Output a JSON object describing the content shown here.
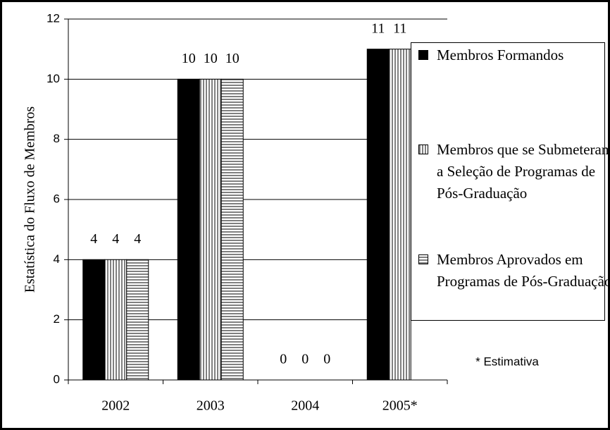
{
  "chart_data": {
    "type": "bar",
    "y_label": "Estatística do Fluxo de Membros",
    "annotation": "* Estimativa",
    "categories": [
      "2002",
      "2003",
      "2004",
      "2005*"
    ],
    "series": [
      {
        "name": "Membros Formandos",
        "color": "#000000",
        "pattern": "solid",
        "values": [
          4,
          10,
          0,
          11
        ]
      },
      {
        "name": "Membros que se Submeteram a Seleção de Programas de Pós-Graduação",
        "color": "#808080",
        "pattern": "vertical",
        "values": [
          4,
          10,
          0,
          11
        ]
      },
      {
        "name": "Membros Aprovados em Programas de Pós-Graduação",
        "color": "#808080",
        "pattern": "horizontal",
        "values": [
          4,
          10,
          0,
          null
        ]
      }
    ],
    "ylim": [
      0,
      12
    ],
    "yticks": [
      0,
      2,
      4,
      6,
      8,
      10,
      12
    ],
    "grid": true,
    "legend": "right"
  }
}
